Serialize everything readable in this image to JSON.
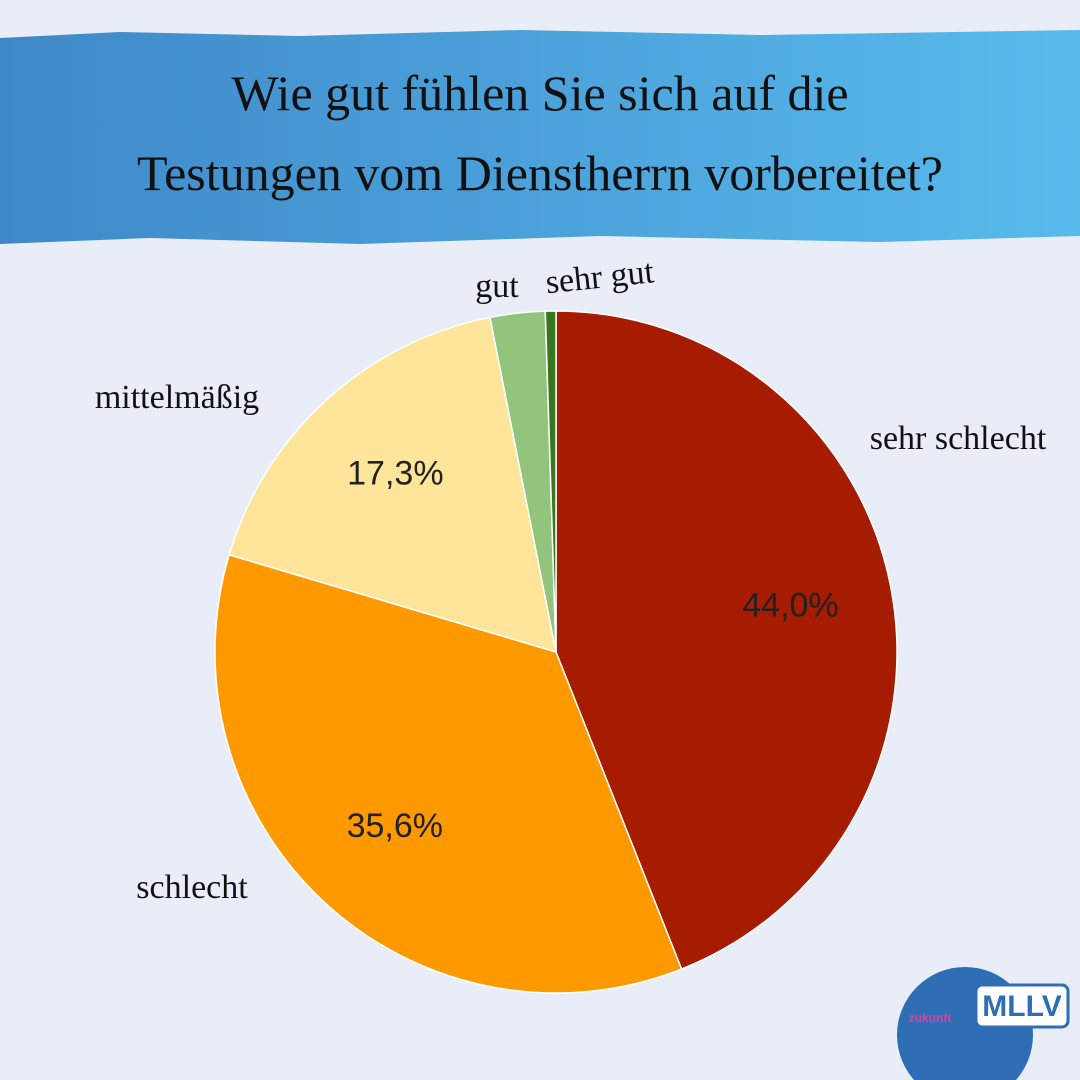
{
  "chart_data": {
    "type": "pie",
    "title": [
      "Wie gut fühlen Sie sich auf die",
      "Testungen vom Dienstherrn vorbereitet?"
    ],
    "categories": [
      "sehr schlecht",
      "schlecht",
      "mittelmäßig",
      "gut",
      "sehr gut"
    ],
    "values": [
      44.0,
      35.6,
      17.3,
      2.6,
      0.5
    ],
    "value_labels": [
      "44,0%",
      "35,6%",
      "17,3%",
      null,
      null
    ],
    "colors": [
      "#a61c00",
      "#ff9900",
      "#ffe599",
      "#93c47d",
      "#38761d"
    ]
  },
  "logo": {
    "text": "MLLV",
    "tagline": "zukunft"
  }
}
